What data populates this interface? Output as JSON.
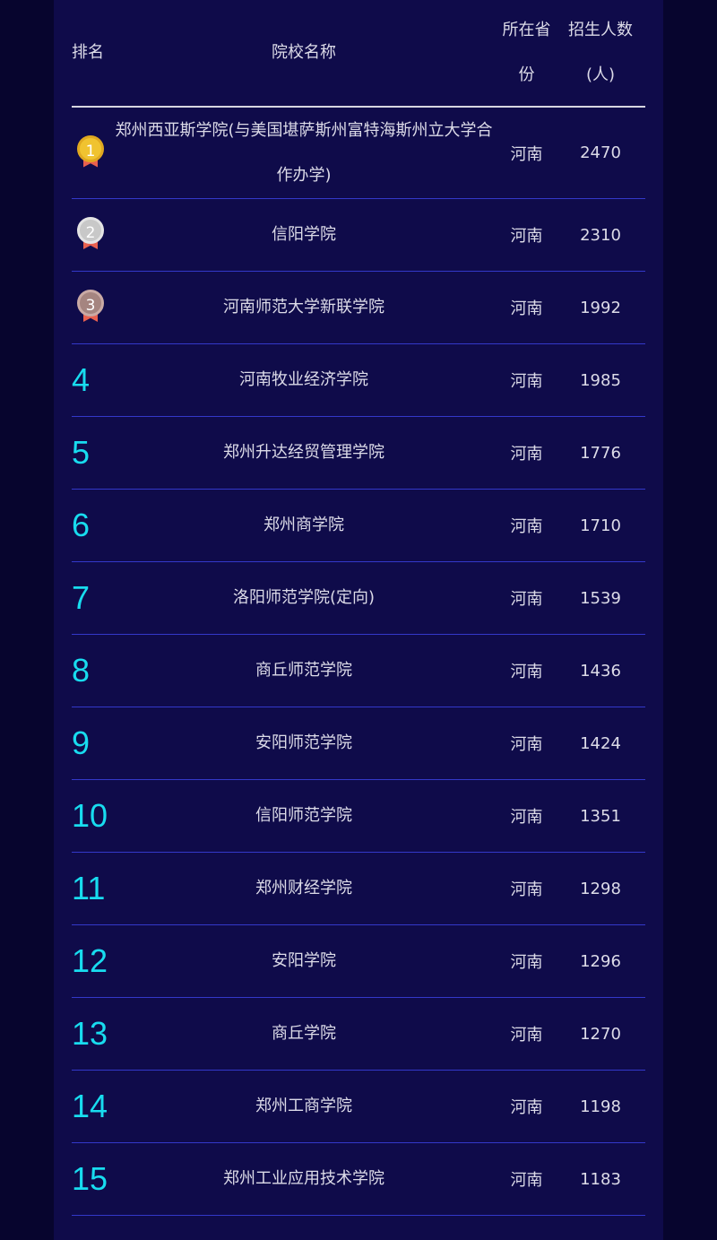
{
  "header": {
    "rank": "排名",
    "name": "院校名称",
    "province": "所在省份",
    "count": "招生人数(人)"
  },
  "colors": {
    "background": "#07052e",
    "panel": "#0f0b4a",
    "rank_number": "#18dcef",
    "row_divider": "#3338c9",
    "gold": "#f0c330",
    "silver": "#c8c8c8",
    "bronze": "#a58580",
    "ribbon": "#e8604f"
  },
  "rows": [
    {
      "rank": "1",
      "name": "郑州西亚斯学院(与美国堪萨斯州富特海斯州立大学合作办学)",
      "province": "河南",
      "count": "2470",
      "medal": "gold"
    },
    {
      "rank": "2",
      "name": "信阳学院",
      "province": "河南",
      "count": "2310",
      "medal": "silver"
    },
    {
      "rank": "3",
      "name": "河南师范大学新联学院",
      "province": "河南",
      "count": "1992",
      "medal": "bronze"
    },
    {
      "rank": "4",
      "name": "河南牧业经济学院",
      "province": "河南",
      "count": "1985"
    },
    {
      "rank": "5",
      "name": "郑州升达经贸管理学院",
      "province": "河南",
      "count": "1776"
    },
    {
      "rank": "6",
      "name": "郑州商学院",
      "province": "河南",
      "count": "1710"
    },
    {
      "rank": "7",
      "name": "洛阳师范学院(定向)",
      "province": "河南",
      "count": "1539"
    },
    {
      "rank": "8",
      "name": "商丘师范学院",
      "province": "河南",
      "count": "1436"
    },
    {
      "rank": "9",
      "name": "安阳师范学院",
      "province": "河南",
      "count": "1424"
    },
    {
      "rank": "10",
      "name": "信阳师范学院",
      "province": "河南",
      "count": "1351"
    },
    {
      "rank": "11",
      "name": "郑州财经学院",
      "province": "河南",
      "count": "1298"
    },
    {
      "rank": "12",
      "name": "安阳学院",
      "province": "河南",
      "count": "1296"
    },
    {
      "rank": "13",
      "name": "商丘学院",
      "province": "河南",
      "count": "1270"
    },
    {
      "rank": "14",
      "name": "郑州工商学院",
      "province": "河南",
      "count": "1198"
    },
    {
      "rank": "15",
      "name": "郑州工业应用技术学院",
      "province": "河南",
      "count": "1183"
    }
  ]
}
